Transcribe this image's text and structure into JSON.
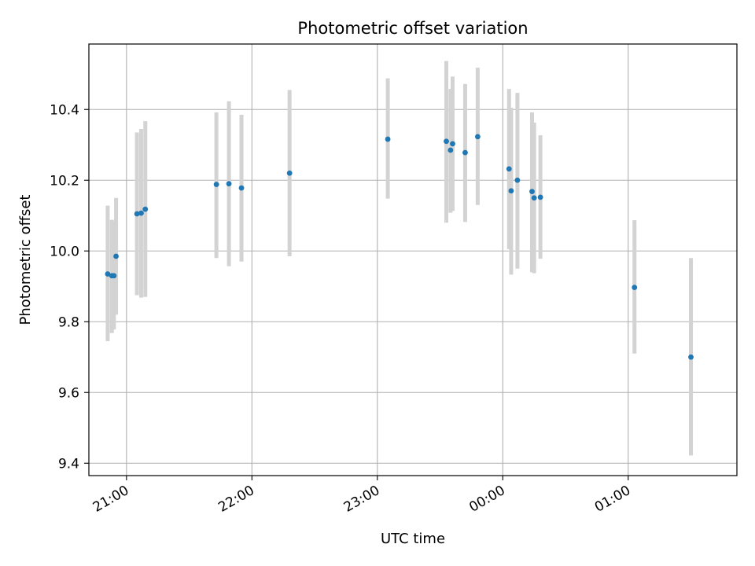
{
  "chart_data": {
    "type": "scatter",
    "title": "Photometric offset variation",
    "xlabel": "UTC time",
    "ylabel": "Photometric offset",
    "x_axis_kind": "time",
    "xlim": [
      "20:42",
      "01:52"
    ],
    "ylim": [
      9.365,
      10.585
    ],
    "x_ticks": [
      "21:00",
      "22:00",
      "23:00",
      "00:00",
      "01:00"
    ],
    "y_ticks": [
      "9.4",
      "9.6",
      "9.8",
      "10.0",
      "10.2",
      "10.4"
    ],
    "grid": true,
    "point_color": "#1f77b4",
    "error_bar_color": "#d3d3d3",
    "points": [
      {
        "x": "20:51",
        "y": 9.935,
        "ylow": 9.745,
        "yhigh": 10.128
      },
      {
        "x": "20:53",
        "y": 9.93,
        "ylow": 9.768,
        "yhigh": 10.088
      },
      {
        "x": "20:54",
        "y": 9.93,
        "ylow": 9.778,
        "yhigh": 10.083
      },
      {
        "x": "20:55",
        "y": 9.985,
        "ylow": 9.82,
        "yhigh": 10.15
      },
      {
        "x": "21:05",
        "y": 10.105,
        "ylow": 9.875,
        "yhigh": 10.335
      },
      {
        "x": "21:07",
        "y": 10.107,
        "ylow": 9.868,
        "yhigh": 10.345
      },
      {
        "x": "21:09",
        "y": 10.118,
        "ylow": 9.87,
        "yhigh": 10.367
      },
      {
        "x": "21:43",
        "y": 10.188,
        "ylow": 9.98,
        "yhigh": 10.392
      },
      {
        "x": "21:49",
        "y": 10.19,
        "ylow": 9.957,
        "yhigh": 10.423
      },
      {
        "x": "21:55",
        "y": 10.178,
        "ylow": 9.97,
        "yhigh": 10.385
      },
      {
        "x": "22:18",
        "y": 10.22,
        "ylow": 9.985,
        "yhigh": 10.455
      },
      {
        "x": "23:05",
        "y": 10.316,
        "ylow": 10.148,
        "yhigh": 10.488
      },
      {
        "x": "23:33",
        "y": 10.31,
        "ylow": 10.08,
        "yhigh": 10.537
      },
      {
        "x": "23:35",
        "y": 10.285,
        "ylow": 10.108,
        "yhigh": 10.458
      },
      {
        "x": "23:36",
        "y": 10.303,
        "ylow": 10.113,
        "yhigh": 10.493
      },
      {
        "x": "23:42",
        "y": 10.278,
        "ylow": 10.082,
        "yhigh": 10.472
      },
      {
        "x": "23:48",
        "y": 10.323,
        "ylow": 10.13,
        "yhigh": 10.518
      },
      {
        "x": "00:03",
        "y": 10.232,
        "ylow": 10.005,
        "yhigh": 10.458
      },
      {
        "x": "00:04",
        "y": 10.17,
        "ylow": 9.933,
        "yhigh": 10.405
      },
      {
        "x": "00:07",
        "y": 10.2,
        "ylow": 9.95,
        "yhigh": 10.447
      },
      {
        "x": "00:14",
        "y": 10.168,
        "ylow": 9.94,
        "yhigh": 10.392
      },
      {
        "x": "00:15",
        "y": 10.15,
        "ylow": 9.937,
        "yhigh": 10.363
      },
      {
        "x": "00:18",
        "y": 10.152,
        "ylow": 9.978,
        "yhigh": 10.327
      },
      {
        "x": "01:03",
        "y": 9.897,
        "ylow": 9.71,
        "yhigh": 10.087
      },
      {
        "x": "01:30",
        "y": 9.7,
        "ylow": 9.422,
        "yhigh": 9.98
      }
    ]
  }
}
